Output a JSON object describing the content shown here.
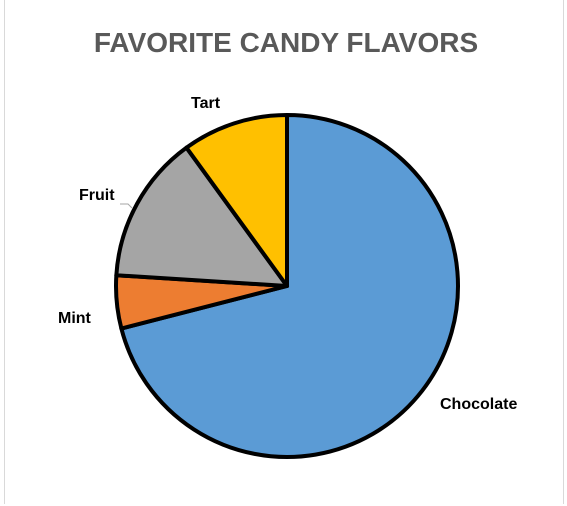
{
  "chart_data": {
    "type": "pie",
    "title": "FAVORITE CANDY FLAVORS",
    "categories": [
      "Chocolate",
      "Mint",
      "Fruit",
      "Tart"
    ],
    "values": [
      71,
      5,
      14,
      10
    ],
    "colors": [
      "#5B9BD5",
      "#ED7D31",
      "#A5A5A5",
      "#FFC000"
    ],
    "legend": "none",
    "data_labels": "category name, outside end"
  }
}
